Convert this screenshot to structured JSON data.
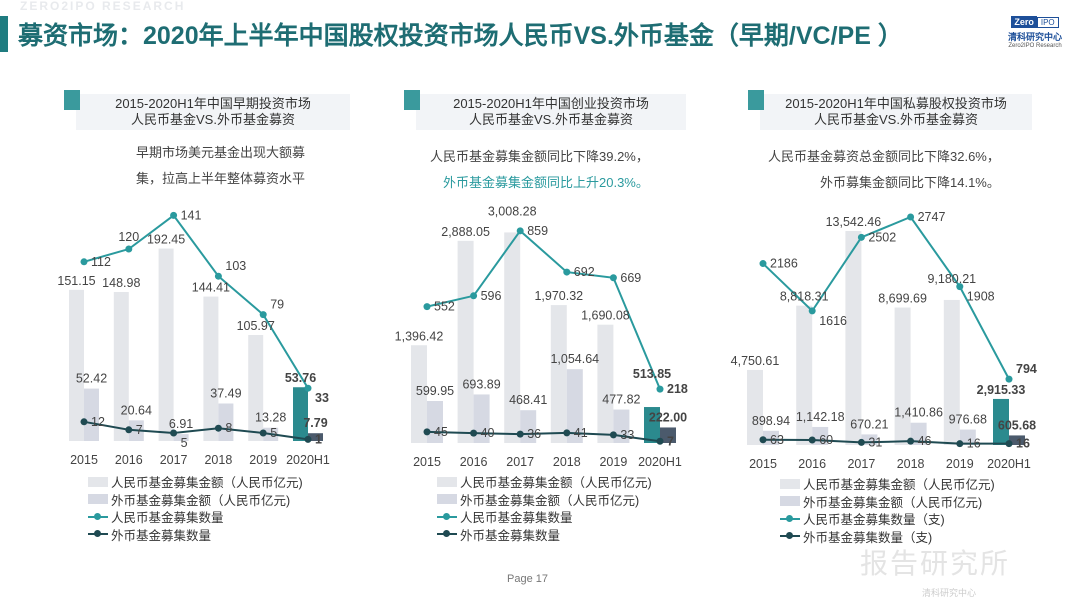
{
  "header": {
    "title": "募资市场：2020年上半年中国股权投资市场人民币VS.外币基金（早期/VC/PE ）",
    "watermark": "ZERO2IPO RESEARCH",
    "logo": {
      "box1": "Zero",
      "box2": "IPO",
      "cn": "清科研究中心",
      "en": "Zero2IPO Research"
    }
  },
  "colors": {
    "title": "#1e6d73",
    "rmb_bar": "#e4e6ea",
    "fx_bar": "#d6d9e3",
    "rmb_bar_highlight": "#2b8a8e",
    "fx_bar_highlight": "#4b5a6c",
    "rmb_line": "#2a9a9e",
    "fx_line": "#1f4a52"
  },
  "charts": [
    {
      "title_line1": "2015-2020H1年中国早期投资市场",
      "title_line2": "人民币基金VS.外币基金募资",
      "note_line1": "早期市场美元基金出现大额募",
      "note_line2": "集，拉高上半年整体募资水平",
      "legend": [
        "人民币基金募集金额（人民币亿元)",
        "外币基金募集金额（人民币亿元)",
        "人民币基金募集数量",
        "外币基金募集数量"
      ]
    },
    {
      "title_line1": "2015-2020H1年中国创业投资市场",
      "title_line2": "人民币基金VS.外币基金募资",
      "note_line1": "人民币基金募集金额同比下降39.2%，",
      "note_line2": "外币基金募集金额同比上升20.3%。",
      "legend": [
        "人民币基金募集金额（人民币亿元)",
        "外币基金募集金额（人民币亿元)",
        "人民币基金募集数量",
        "外币基金募集数量"
      ]
    },
    {
      "title_line1": "2015-2020H1年中国私募股权投资市场",
      "title_line2": "人民币基金VS.外币基金募资",
      "note_line1": "人民币基金募资总金额同比下降32.6%，",
      "note_line2": "外币募集金额同比下降14.1%。",
      "legend": [
        "人民币基金募集金额（人民币亿元)",
        "外币基金募集金额（人民币亿元)",
        "人民币基金募集数量（支)",
        "外币基金募集数量（支)"
      ]
    }
  ],
  "chart_data": [
    {
      "type": "bar+line",
      "title": "2015-2020H1年中国早期投资市场 人民币基金VS.外币基金募资",
      "categories": [
        "2015",
        "2016",
        "2017",
        "2018",
        "2019",
        "2020H1"
      ],
      "series": [
        {
          "name": "人民币基金募集金额（人民币亿元)",
          "type": "bar",
          "values": [
            151.15,
            148.98,
            192.45,
            144.41,
            105.97,
            53.76
          ],
          "labels": [
            "151.15",
            "148.98",
            "192.45",
            "144.41",
            "105.97",
            "53.76"
          ]
        },
        {
          "name": "外币基金募集金额（人民币亿元)",
          "type": "bar",
          "values": [
            52.42,
            20.64,
            6.91,
            37.49,
            13.28,
            7.79
          ],
          "labels": [
            "52.42",
            "20.64",
            "6.91",
            "37.49",
            "13.28",
            "7.79"
          ]
        },
        {
          "name": "人民币基金募集数量",
          "type": "line",
          "values": [
            112,
            120,
            141,
            103,
            79,
            33
          ]
        },
        {
          "name": "外币基金募集数量",
          "type": "line",
          "values": [
            12,
            7,
            5,
            8,
            5,
            1
          ]
        }
      ],
      "highlight_category": "2020H1",
      "grid": false,
      "legend_position": "bottom"
    },
    {
      "type": "bar+line",
      "title": "2015-2020H1年中国创业投资市场 人民币基金VS.外币基金募资",
      "categories": [
        "2015",
        "2016",
        "2017",
        "2018",
        "2019",
        "2020H1"
      ],
      "series": [
        {
          "name": "人民币基金募集金额（人民币亿元)",
          "type": "bar",
          "values": [
            1396.42,
            2888.05,
            3008.28,
            1970.32,
            1690.08,
            513.85
          ],
          "labels": [
            "1,396.42",
            "2,888.05",
            "3,008.28",
            "1,970.32",
            "1,690.08",
            "513.85"
          ]
        },
        {
          "name": "外币基金募集金额（人民币亿元)",
          "type": "bar",
          "values": [
            599.95,
            693.89,
            468.41,
            1054.64,
            477.82,
            222.0
          ],
          "labels": [
            "599.95",
            "693.89",
            "468.41",
            "1,054.64",
            "477.82",
            "222.00"
          ]
        },
        {
          "name": "人民币基金募集数量",
          "type": "line",
          "values": [
            552,
            596,
            859,
            692,
            669,
            218
          ]
        },
        {
          "name": "外币基金募集数量",
          "type": "line",
          "values": [
            45,
            40,
            36,
            41,
            33,
            7
          ]
        }
      ],
      "highlight_category": "2020H1",
      "grid": false,
      "legend_position": "bottom"
    },
    {
      "type": "bar+line",
      "title": "2015-2020H1年中国私募股权投资市场 人民币基金VS.外币基金募资",
      "categories": [
        "2015",
        "2016",
        "2017",
        "2018",
        "2019",
        "2020H1"
      ],
      "series": [
        {
          "name": "人民币基金募集金额（人民币亿元)",
          "type": "bar",
          "values": [
            4750.61,
            8818.31,
            13542.46,
            8699.69,
            9180.21,
            2915.33
          ],
          "labels": [
            "4,750.61",
            "8,818.31",
            "13,542.46",
            "8,699.69",
            "9,180.21",
            "2,915.33"
          ]
        },
        {
          "name": "外币基金募集金额（人民币亿元)",
          "type": "bar",
          "values": [
            898.94,
            1142.18,
            670.21,
            1410.86,
            976.68,
            605.68
          ],
          "labels": [
            "898.94",
            "1,142.18",
            "670.21",
            "1,410.86",
            "976.68",
            "605.68"
          ]
        },
        {
          "name": "人民币基金募集数量（支)",
          "type": "line",
          "values": [
            2186,
            1616,
            2502,
            2747,
            1908,
            794
          ]
        },
        {
          "name": "外币基金募集数量（支)",
          "type": "line",
          "values": [
            63,
            60,
            31,
            46,
            16,
            16
          ]
        }
      ],
      "highlight_category": "2020H1",
      "grid": false,
      "legend_position": "bottom"
    }
  ],
  "footer": {
    "page": "Page  17",
    "watermark": "报告研究所",
    "watermark_sub": "清科研究中心"
  }
}
